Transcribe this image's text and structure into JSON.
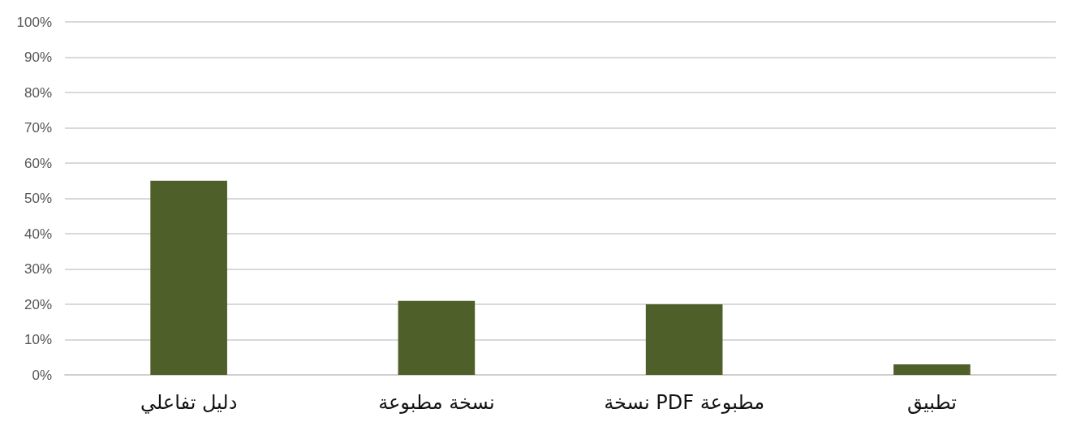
{
  "chart_data": {
    "type": "bar",
    "categories": [
      "دليل تفاعلي",
      "نسخة مطبوعة",
      "نسخة PDF مطبوعة",
      "تطبيق"
    ],
    "values": [
      55,
      21,
      20,
      3
    ],
    "color": "#4f5f2a",
    "ylim": [
      0,
      100
    ],
    "yticks": [
      {
        "value": 0,
        "label": "0%"
      },
      {
        "value": 10,
        "label": "10%"
      },
      {
        "value": 20,
        "label": "20%"
      },
      {
        "value": 30,
        "label": "30%"
      },
      {
        "value": 40,
        "label": "40%"
      },
      {
        "value": 50,
        "label": "50%"
      },
      {
        "value": 60,
        "label": "60%"
      },
      {
        "value": 70,
        "label": "70%"
      },
      {
        "value": 80,
        "label": "80%"
      },
      {
        "value": 90,
        "label": "90%"
      },
      {
        "value": 100,
        "label": "100%"
      }
    ],
    "grid": true
  }
}
